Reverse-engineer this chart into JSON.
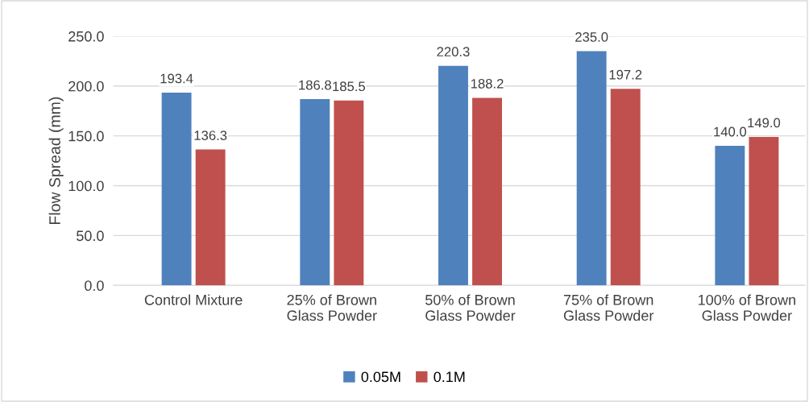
{
  "chart_data": {
    "type": "bar",
    "ylabel": "Flow Spread (mm)",
    "categories": [
      "Control Mixture",
      "25% of Brown\nGlass Powder",
      "50% of Brown\nGlass Powder",
      "75% of Brown\nGlass Powder",
      "100% of Brown\nGlass Powder"
    ],
    "series": [
      {
        "name": "0.05M",
        "color": "#4f81bd",
        "values": [
          193.4,
          186.8,
          220.3,
          235.0,
          140.0
        ],
        "value_labels": [
          "193.4",
          "186.8",
          "220.3",
          "235.0",
          "140.0"
        ]
      },
      {
        "name": "0.1M",
        "color": "#c0504d",
        "values": [
          136.3,
          185.5,
          188.2,
          197.2,
          149.0
        ],
        "value_labels": [
          "136.3",
          "185.5",
          "188.2",
          "197.2",
          "149.0"
        ]
      }
    ],
    "ylim": [
      0,
      250
    ],
    "yticks": [
      {
        "value": 0,
        "label": "0.0"
      },
      {
        "value": 50,
        "label": "50.0"
      },
      {
        "value": 100,
        "label": "100.0"
      },
      {
        "value": 150,
        "label": "150.0"
      },
      {
        "value": 200,
        "label": "200.0"
      },
      {
        "value": 250,
        "label": "250.0"
      }
    ],
    "grid": "y",
    "legend": "bottom"
  }
}
